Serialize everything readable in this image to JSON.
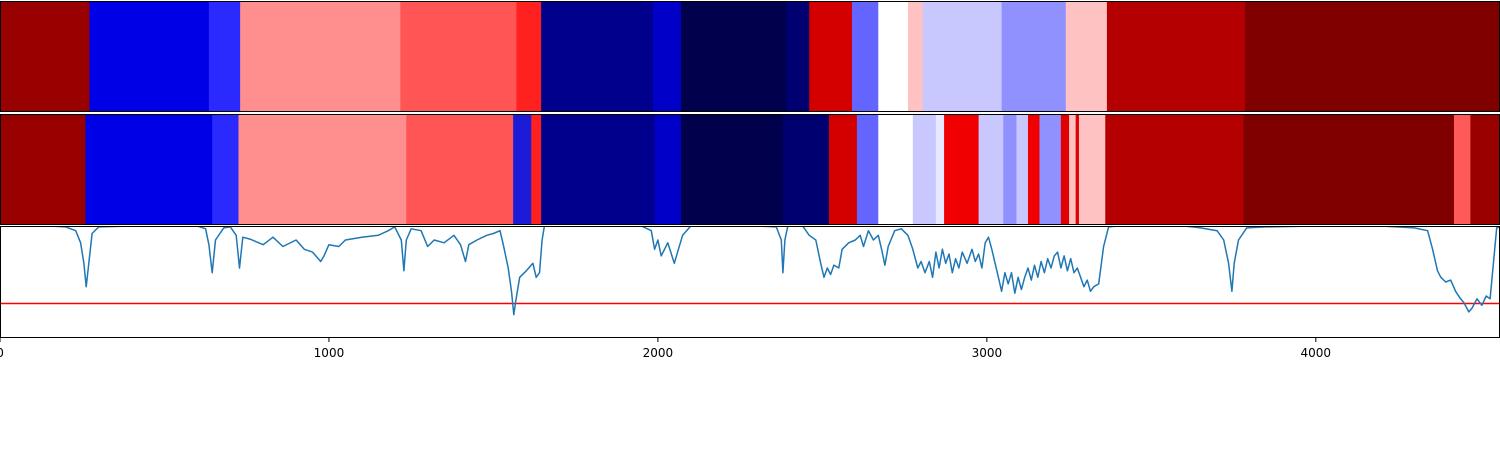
{
  "chart_data": [
    {
      "type": "heatmap",
      "xlim": [
        0,
        4560
      ],
      "colormap": "seismic",
      "segments": [
        {
          "start": 0,
          "end": 272,
          "color": "#990000"
        },
        {
          "start": 272,
          "end": 635,
          "color": "#0000e6"
        },
        {
          "start": 635,
          "end": 730,
          "color": "#2a2aff"
        },
        {
          "start": 730,
          "end": 1217,
          "color": "#ff8e8e"
        },
        {
          "start": 1217,
          "end": 1570,
          "color": "#ff5555"
        },
        {
          "start": 1570,
          "end": 1645,
          "color": "#ff2020"
        },
        {
          "start": 1645,
          "end": 1985,
          "color": "#00008c"
        },
        {
          "start": 1985,
          "end": 2070,
          "color": "#0000c8"
        },
        {
          "start": 2070,
          "end": 2390,
          "color": "#00004c"
        },
        {
          "start": 2390,
          "end": 2460,
          "color": "#000070"
        },
        {
          "start": 2460,
          "end": 2590,
          "color": "#d40000"
        },
        {
          "start": 2590,
          "end": 2670,
          "color": "#6464ff"
        },
        {
          "start": 2670,
          "end": 2760,
          "color": "#ffffff"
        },
        {
          "start": 2760,
          "end": 2805,
          "color": "#ffc2c2"
        },
        {
          "start": 2805,
          "end": 3045,
          "color": "#c8c8ff"
        },
        {
          "start": 3045,
          "end": 3240,
          "color": "#9090ff"
        },
        {
          "start": 3240,
          "end": 3365,
          "color": "#ffc2c2"
        },
        {
          "start": 3365,
          "end": 3785,
          "color": "#b40000"
        },
        {
          "start": 3785,
          "end": 4560,
          "color": "#800000"
        }
      ]
    },
    {
      "type": "heatmap",
      "xlim": [
        0,
        4560
      ],
      "colormap": "seismic",
      "segments": [
        {
          "start": 0,
          "end": 260,
          "color": "#990000"
        },
        {
          "start": 260,
          "end": 645,
          "color": "#0000e6"
        },
        {
          "start": 645,
          "end": 725,
          "color": "#2a2aff"
        },
        {
          "start": 725,
          "end": 1235,
          "color": "#ff8e8e"
        },
        {
          "start": 1235,
          "end": 1560,
          "color": "#ff5555"
        },
        {
          "start": 1560,
          "end": 1615,
          "color": "#1c1cd8"
        },
        {
          "start": 1615,
          "end": 1645,
          "color": "#ff2020"
        },
        {
          "start": 1645,
          "end": 1990,
          "color": "#00008c"
        },
        {
          "start": 1990,
          "end": 2070,
          "color": "#0000c8"
        },
        {
          "start": 2070,
          "end": 2380,
          "color": "#00004c"
        },
        {
          "start": 2380,
          "end": 2520,
          "color": "#000070"
        },
        {
          "start": 2520,
          "end": 2605,
          "color": "#d40000"
        },
        {
          "start": 2605,
          "end": 2670,
          "color": "#6464ff"
        },
        {
          "start": 2670,
          "end": 2775,
          "color": "#ffffff"
        },
        {
          "start": 2775,
          "end": 2845,
          "color": "#c8c8ff"
        },
        {
          "start": 2845,
          "end": 2870,
          "color": "#e8e8ff"
        },
        {
          "start": 2870,
          "end": 2975,
          "color": "#f00000"
        },
        {
          "start": 2975,
          "end": 3050,
          "color": "#c8c8ff"
        },
        {
          "start": 3050,
          "end": 3090,
          "color": "#9090ff"
        },
        {
          "start": 3090,
          "end": 3125,
          "color": "#c8c8ff"
        },
        {
          "start": 3125,
          "end": 3160,
          "color": "#f00000"
        },
        {
          "start": 3160,
          "end": 3225,
          "color": "#9090ff"
        },
        {
          "start": 3225,
          "end": 3250,
          "color": "#e00000"
        },
        {
          "start": 3250,
          "end": 3270,
          "color": "#ffc2c2"
        },
        {
          "start": 3270,
          "end": 3280,
          "color": "#e00000"
        },
        {
          "start": 3280,
          "end": 3360,
          "color": "#ffc2c2"
        },
        {
          "start": 3360,
          "end": 3780,
          "color": "#b40000"
        },
        {
          "start": 3780,
          "end": 4420,
          "color": "#800000"
        },
        {
          "start": 4420,
          "end": 4470,
          "color": "#ff5a5a"
        },
        {
          "start": 4470,
          "end": 4560,
          "color": "#990000"
        }
      ]
    },
    {
      "type": "line",
      "xlim": [
        0,
        4560
      ],
      "ylim": [
        -0.2,
        1.0
      ],
      "grid": false,
      "line_color": "#1f77b4",
      "threshold": 0.17,
      "threshold_color": "#ff0000",
      "xticks": [
        0,
        1000,
        2000,
        3000,
        4000
      ],
      "xtick_labels": [
        "0",
        "1000",
        "2000",
        "3000",
        "4000"
      ],
      "points": [
        [
          0,
          1.0
        ],
        [
          150,
          1.0
        ],
        [
          200,
          0.99
        ],
        [
          230,
          0.95
        ],
        [
          245,
          0.82
        ],
        [
          255,
          0.6
        ],
        [
          262,
          0.35
        ],
        [
          270,
          0.6
        ],
        [
          280,
          0.92
        ],
        [
          300,
          0.99
        ],
        [
          400,
          1.0
        ],
        [
          600,
          1.0
        ],
        [
          625,
          0.97
        ],
        [
          635,
          0.8
        ],
        [
          645,
          0.5
        ],
        [
          655,
          0.85
        ],
        [
          680,
          0.98
        ],
        [
          700,
          0.99
        ],
        [
          718,
          0.9
        ],
        [
          728,
          0.55
        ],
        [
          738,
          0.88
        ],
        [
          760,
          0.86
        ],
        [
          800,
          0.8
        ],
        [
          830,
          0.88
        ],
        [
          860,
          0.78
        ],
        [
          900,
          0.85
        ],
        [
          925,
          0.75
        ],
        [
          950,
          0.72
        ],
        [
          975,
          0.62
        ],
        [
          985,
          0.68
        ],
        [
          1000,
          0.8
        ],
        [
          1030,
          0.78
        ],
        [
          1050,
          0.85
        ],
        [
          1100,
          0.88
        ],
        [
          1150,
          0.9
        ],
        [
          1180,
          0.95
        ],
        [
          1200,
          0.99
        ],
        [
          1220,
          0.85
        ],
        [
          1228,
          0.52
        ],
        [
          1235,
          0.85
        ],
        [
          1250,
          0.97
        ],
        [
          1280,
          0.95
        ],
        [
          1300,
          0.78
        ],
        [
          1320,
          0.85
        ],
        [
          1350,
          0.82
        ],
        [
          1380,
          0.9
        ],
        [
          1400,
          0.8
        ],
        [
          1415,
          0.62
        ],
        [
          1425,
          0.8
        ],
        [
          1450,
          0.85
        ],
        [
          1480,
          0.9
        ],
        [
          1500,
          0.92
        ],
        [
          1520,
          0.95
        ],
        [
          1530,
          0.8
        ],
        [
          1545,
          0.55
        ],
        [
          1555,
          0.3
        ],
        [
          1562,
          0.05
        ],
        [
          1568,
          0.2
        ],
        [
          1580,
          0.45
        ],
        [
          1600,
          0.52
        ],
        [
          1620,
          0.6
        ],
        [
          1630,
          0.45
        ],
        [
          1640,
          0.5
        ],
        [
          1648,
          0.85
        ],
        [
          1655,
          1.0
        ],
        [
          1700,
          1.0
        ],
        [
          1950,
          1.0
        ],
        [
          1980,
          0.95
        ],
        [
          1990,
          0.75
        ],
        [
          2000,
          0.85
        ],
        [
          2010,
          0.68
        ],
        [
          2030,
          0.82
        ],
        [
          2050,
          0.6
        ],
        [
          2060,
          0.72
        ],
        [
          2075,
          0.9
        ],
        [
          2100,
          1.0
        ],
        [
          2300,
          1.0
        ],
        [
          2360,
          0.99
        ],
        [
          2375,
          0.85
        ],
        [
          2380,
          0.5
        ],
        [
          2386,
          0.85
        ],
        [
          2395,
          1.0
        ],
        [
          2440,
          1.0
        ],
        [
          2460,
          0.9
        ],
        [
          2480,
          0.85
        ],
        [
          2495,
          0.6
        ],
        [
          2505,
          0.45
        ],
        [
          2515,
          0.55
        ],
        [
          2525,
          0.48
        ],
        [
          2535,
          0.58
        ],
        [
          2550,
          0.55
        ],
        [
          2560,
          0.75
        ],
        [
          2580,
          0.82
        ],
        [
          2600,
          0.85
        ],
        [
          2615,
          0.9
        ],
        [
          2625,
          0.78
        ],
        [
          2640,
          0.95
        ],
        [
          2655,
          0.85
        ],
        [
          2670,
          0.9
        ],
        [
          2680,
          0.75
        ],
        [
          2690,
          0.58
        ],
        [
          2700,
          0.78
        ],
        [
          2720,
          0.95
        ],
        [
          2740,
          0.97
        ],
        [
          2760,
          0.9
        ],
        [
          2775,
          0.75
        ],
        [
          2790,
          0.55
        ],
        [
          2800,
          0.62
        ],
        [
          2812,
          0.5
        ],
        [
          2825,
          0.62
        ],
        [
          2835,
          0.45
        ],
        [
          2845,
          0.72
        ],
        [
          2855,
          0.55
        ],
        [
          2865,
          0.75
        ],
        [
          2875,
          0.6
        ],
        [
          2885,
          0.7
        ],
        [
          2895,
          0.5
        ],
        [
          2905,
          0.65
        ],
        [
          2915,
          0.55
        ],
        [
          2925,
          0.72
        ],
        [
          2940,
          0.6
        ],
        [
          2955,
          0.75
        ],
        [
          2965,
          0.62
        ],
        [
          2975,
          0.7
        ],
        [
          2985,
          0.55
        ],
        [
          2995,
          0.82
        ],
        [
          3005,
          0.88
        ],
        [
          3015,
          0.75
        ],
        [
          3025,
          0.6
        ],
        [
          3035,
          0.45
        ],
        [
          3045,
          0.3
        ],
        [
          3055,
          0.5
        ],
        [
          3065,
          0.38
        ],
        [
          3075,
          0.5
        ],
        [
          3085,
          0.28
        ],
        [
          3095,
          0.45
        ],
        [
          3105,
          0.32
        ],
        [
          3115,
          0.45
        ],
        [
          3125,
          0.55
        ],
        [
          3135,
          0.42
        ],
        [
          3145,
          0.58
        ],
        [
          3155,
          0.45
        ],
        [
          3165,
          0.62
        ],
        [
          3175,
          0.5
        ],
        [
          3185,
          0.65
        ],
        [
          3195,
          0.55
        ],
        [
          3205,
          0.68
        ],
        [
          3215,
          0.72
        ],
        [
          3225,
          0.55
        ],
        [
          3235,
          0.68
        ],
        [
          3245,
          0.52
        ],
        [
          3255,
          0.65
        ],
        [
          3265,
          0.5
        ],
        [
          3275,
          0.55
        ],
        [
          3285,
          0.45
        ],
        [
          3295,
          0.35
        ],
        [
          3305,
          0.42
        ],
        [
          3315,
          0.3
        ],
        [
          3325,
          0.35
        ],
        [
          3340,
          0.38
        ],
        [
          3355,
          0.78
        ],
        [
          3370,
          0.99
        ],
        [
          3400,
          1.0
        ],
        [
          3600,
          1.0
        ],
        [
          3650,
          0.98
        ],
        [
          3700,
          0.95
        ],
        [
          3720,
          0.85
        ],
        [
          3735,
          0.6
        ],
        [
          3745,
          0.3
        ],
        [
          3752,
          0.6
        ],
        [
          3765,
          0.85
        ],
        [
          3790,
          0.98
        ],
        [
          3850,
          0.99
        ],
        [
          4000,
          1.0
        ],
        [
          4200,
          1.0
        ],
        [
          4300,
          0.98
        ],
        [
          4340,
          0.95
        ],
        [
          4355,
          0.75
        ],
        [
          4370,
          0.52
        ],
        [
          4380,
          0.45
        ],
        [
          4395,
          0.4
        ],
        [
          4410,
          0.42
        ],
        [
          4425,
          0.3
        ],
        [
          4440,
          0.22
        ],
        [
          4450,
          0.18
        ],
        [
          4465,
          0.08
        ],
        [
          4475,
          0.12
        ],
        [
          4490,
          0.22
        ],
        [
          4505,
          0.15
        ],
        [
          4518,
          0.25
        ],
        [
          4530,
          0.22
        ],
        [
          4540,
          0.6
        ],
        [
          4550,
          0.98
        ],
        [
          4560,
          0.99
        ]
      ]
    }
  ]
}
